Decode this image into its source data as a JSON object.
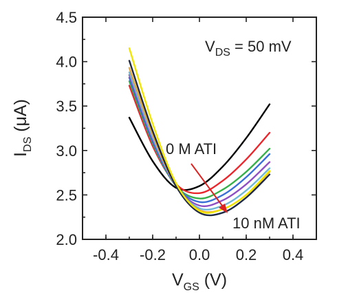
{
  "chart_data": {
    "type": "line",
    "xlabel": {
      "main": "V",
      "sub": "GS",
      "unit": " (V)"
    },
    "ylabel": {
      "main": "I",
      "sub": "DS",
      "unit": " (μA)"
    },
    "xlim": [
      -0.5,
      0.5
    ],
    "ylim": [
      2.0,
      4.5
    ],
    "x_ticks": [
      "-0.4",
      "-0.2",
      "0.0",
      "0.2",
      "0.4"
    ],
    "y_ticks": [
      "2.0",
      "2.5",
      "3.0",
      "3.5",
      "4.0",
      "4.5"
    ],
    "annotations": {
      "vds": {
        "main": "V",
        "sub": "DS",
        "rest": " = 50 mV"
      },
      "start_label": "0 M ATI",
      "end_label": "10 nM ATI"
    },
    "arrow_color": "#dd2222",
    "grid": false,
    "series": [
      {
        "color": "#000000",
        "points": [
          [
            -0.3,
            3.37
          ],
          [
            -0.2,
            2.88
          ],
          [
            -0.1,
            2.58
          ],
          [
            0.0,
            2.6
          ],
          [
            0.1,
            2.82
          ],
          [
            0.2,
            3.14
          ],
          [
            0.3,
            3.52
          ]
        ]
      },
      {
        "color": "#e8262c",
        "points": [
          [
            -0.3,
            3.73
          ],
          [
            -0.2,
            3.05
          ],
          [
            -0.1,
            2.62
          ],
          [
            0.0,
            2.52
          ],
          [
            0.1,
            2.66
          ],
          [
            0.2,
            2.9
          ],
          [
            0.3,
            3.2
          ]
        ]
      },
      {
        "color": "#38b04a",
        "points": [
          [
            -0.3,
            3.78
          ],
          [
            -0.2,
            3.08
          ],
          [
            -0.1,
            2.6
          ],
          [
            0.0,
            2.46
          ],
          [
            0.1,
            2.56
          ],
          [
            0.2,
            2.76
          ],
          [
            0.3,
            3.02
          ]
        ]
      },
      {
        "color": "#3a6fd8",
        "points": [
          [
            -0.3,
            3.82
          ],
          [
            -0.2,
            3.1
          ],
          [
            -0.1,
            2.6
          ],
          [
            0.0,
            2.42
          ],
          [
            0.1,
            2.5
          ],
          [
            0.2,
            2.7
          ],
          [
            0.3,
            2.96
          ]
        ]
      },
      {
        "color": "#8e4fc4",
        "points": [
          [
            -0.3,
            3.85
          ],
          [
            -0.2,
            3.13
          ],
          [
            -0.1,
            2.6
          ],
          [
            0.0,
            2.38
          ],
          [
            0.1,
            2.44
          ],
          [
            0.2,
            2.62
          ],
          [
            0.3,
            2.87
          ]
        ]
      },
      {
        "color": "#6fb7d6",
        "points": [
          [
            -0.3,
            3.88
          ],
          [
            -0.2,
            3.15
          ],
          [
            -0.1,
            2.6
          ],
          [
            0.0,
            2.35
          ],
          [
            0.1,
            2.38
          ],
          [
            0.2,
            2.55
          ],
          [
            0.3,
            2.8
          ]
        ]
      },
      {
        "color": "#e8a53a",
        "points": [
          [
            -0.3,
            3.93
          ],
          [
            -0.2,
            3.18
          ],
          [
            -0.1,
            2.6
          ],
          [
            0.0,
            2.33
          ],
          [
            0.1,
            2.34
          ],
          [
            0.2,
            2.5
          ],
          [
            0.3,
            2.76
          ]
        ]
      },
      {
        "color": "#1f2a44",
        "points": [
          [
            -0.3,
            4.01
          ],
          [
            -0.2,
            3.22
          ],
          [
            -0.1,
            2.6
          ],
          [
            0.0,
            2.3
          ],
          [
            0.1,
            2.3
          ],
          [
            0.2,
            2.47
          ],
          [
            0.3,
            2.73
          ]
        ]
      },
      {
        "color": "#f2e600",
        "points": [
          [
            -0.3,
            4.15
          ],
          [
            -0.2,
            3.3
          ],
          [
            -0.1,
            2.63
          ],
          [
            0.0,
            2.32
          ],
          [
            0.1,
            2.34
          ],
          [
            0.2,
            2.5
          ],
          [
            0.3,
            2.77
          ]
        ]
      }
    ]
  }
}
